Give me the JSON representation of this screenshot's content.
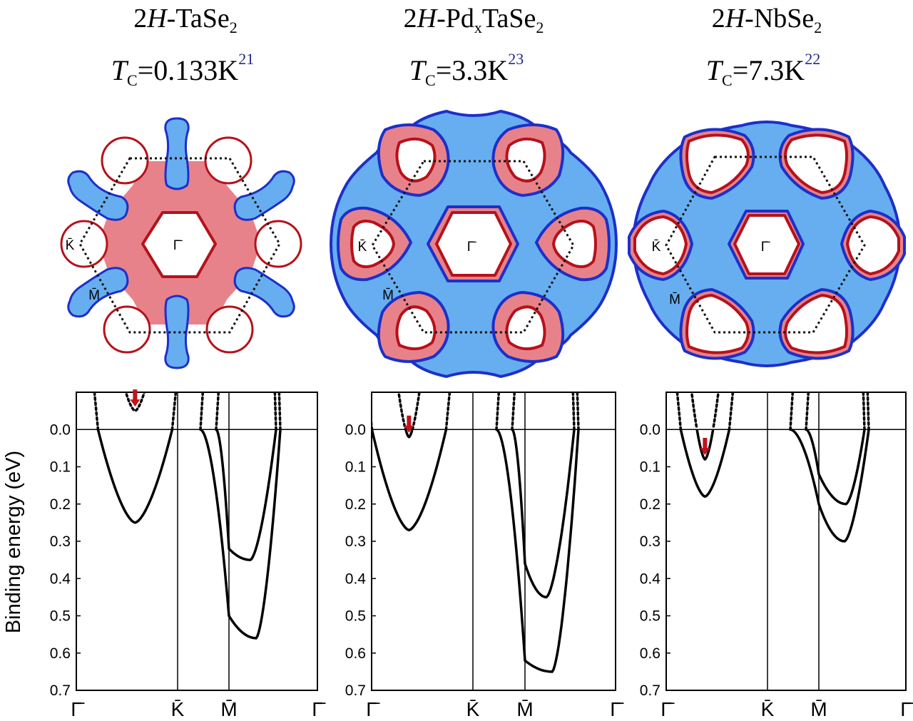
{
  "figure": {
    "panels": [
      {
        "title_prefix": "2",
        "title_italic": "H",
        "title_main": "-TaSe",
        "title_sub": "2",
        "title_sub2": "",
        "title_tail": "",
        "tc_italic": "T",
        "tc_sub": "C",
        "tc_value": "=0.133K",
        "tc_ref": "21"
      },
      {
        "title_prefix": "2",
        "title_italic": "H",
        "title_main": "-Pd",
        "title_sub": "x",
        "title_sub2": "2",
        "title_tail": "TaSe",
        "tc_italic": "T",
        "tc_sub": "C",
        "tc_value": "=3.3K",
        "tc_ref": "23"
      },
      {
        "title_prefix": "2",
        "title_italic": "H",
        "title_main": "-NbSe",
        "title_sub": "2",
        "title_sub2": "",
        "title_tail": "",
        "tc_italic": "T",
        "tc_sub": "C",
        "tc_value": "=7.3K",
        "tc_ref": "22"
      }
    ],
    "fermi_surface_labels": {
      "gamma": "Γ̄",
      "k": "K̄",
      "m": "M̄"
    },
    "colors": {
      "hole_pocket": "#e8707a",
      "electron_pocket": "#66aef0",
      "pocket_edge_red": "#b5121b",
      "pocket_edge_blue": "#1d2fc9",
      "arrow": "#c0141c"
    }
  },
  "chart_data": {
    "type": "line",
    "ylabel": "Binding energy (eV)",
    "y_ticks": [
      "0.0",
      "0.1",
      "0.2",
      "0.3",
      "0.4",
      "0.5",
      "0.6",
      "0.7"
    ],
    "ylim": [
      0.7,
      -0.1
    ],
    "x_ticks": [
      "Γ̄",
      "K̄",
      "M̄",
      "Γ̄"
    ],
    "panels": [
      {
        "name": "2H-TaSe2",
        "band_minima_eV": {
          "gamma_pocket_1": 0.25,
          "gamma_pocket_2": -0.05,
          "m_inner_kink": 0.32,
          "m_inner_min": 0.35,
          "m_outer_kink": 0.5,
          "m_outer_min": 0.56
        }
      },
      {
        "name": "2H-PdxTaSe2",
        "band_minima_eV": {
          "gamma_pocket_1": 0.27,
          "gamma_pocket_2": 0.02,
          "m_inner_kink": 0.36,
          "m_inner_min": 0.45,
          "m_outer_kink": 0.62,
          "m_outer_min": 0.65
        }
      },
      {
        "name": "2H-NbSe2",
        "band_minima_eV": {
          "gamma_pocket_1": 0.18,
          "gamma_pocket_2": 0.08,
          "m_inner_kink": 0.12,
          "m_inner_min": 0.2,
          "m_outer_kink": 0.2,
          "m_outer_min": 0.3
        }
      }
    ]
  }
}
